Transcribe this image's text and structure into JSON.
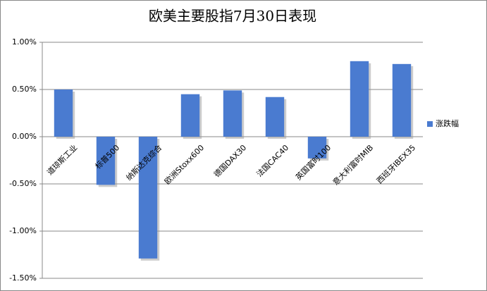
{
  "chart_data": {
    "type": "bar",
    "title": "欧美主要股指7月30日表现",
    "categories": [
      "道琼斯工业",
      "标普500",
      "纳斯达克综合",
      "欧洲Stoxx600",
      "德国DAX30",
      "法国CAC40",
      "英国富时100",
      "意大利富时MIB",
      "西班牙IBEX35"
    ],
    "series": [
      {
        "name": "涨跌幅",
        "color": "#4a7bd0",
        "values": [
          0.5,
          -0.51,
          -1.29,
          0.45,
          0.49,
          0.42,
          -0.23,
          0.8,
          0.77
        ]
      }
    ],
    "ylim": [
      -1.5,
      1.0
    ],
    "yticks": [
      {
        "value": -1.5,
        "label": "-1.50%"
      },
      {
        "value": -1.0,
        "label": "-1.00%"
      },
      {
        "value": -0.5,
        "label": "-0.50%"
      },
      {
        "value": 0,
        "label": "0.00%"
      },
      {
        "value": 0.5,
        "label": "0.50%"
      },
      {
        "value": 1.0,
        "label": "1.00%"
      }
    ],
    "grid": true,
    "legend": "right"
  }
}
